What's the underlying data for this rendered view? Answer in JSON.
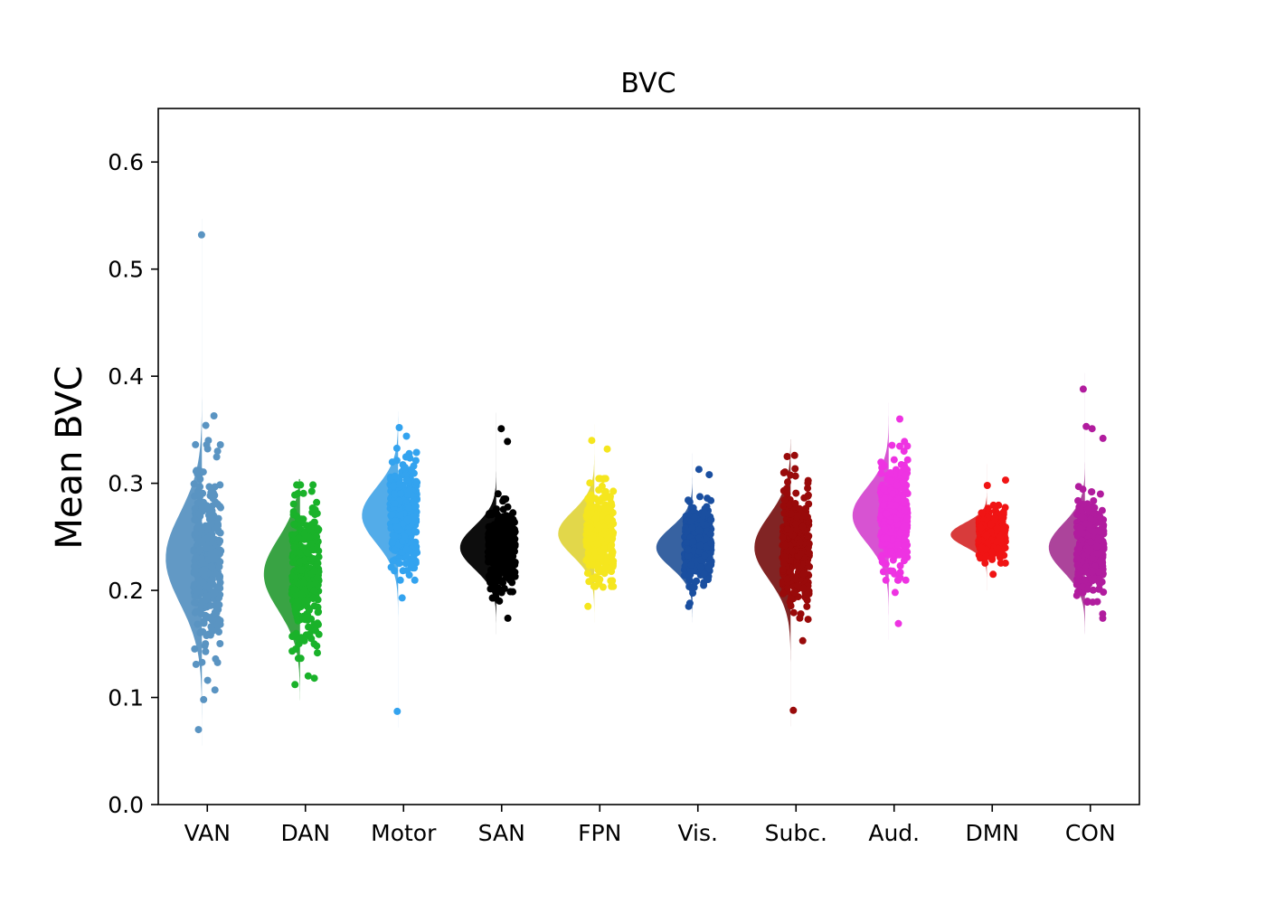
{
  "chart_data": {
    "type": "raincloud",
    "title": "BVC",
    "ylabel": "Mean BVC",
    "xlabel": "",
    "ylim": [
      0.0,
      0.65
    ],
    "yticks": [
      0.0,
      0.1,
      0.2,
      0.3,
      0.4,
      0.5,
      0.6
    ],
    "grid": false,
    "categories": [
      {
        "name": "VAN",
        "color": "#5a94c2",
        "cloud_color": "#5a94c2",
        "center": 0.23,
        "q1": 0.205,
        "q3": 0.262,
        "min": 0.07,
        "max": 0.532,
        "outliers": [
          0.532,
          0.363,
          0.354,
          0.34,
          0.33,
          0.116,
          0.107,
          0.098,
          0.07
        ]
      },
      {
        "name": "DAN",
        "color": "#1ab22a",
        "cloud_color": "#2e9e3a",
        "center": 0.215,
        "q1": 0.195,
        "q3": 0.24,
        "min": 0.112,
        "max": 0.289,
        "outliers": [
          0.289,
          0.12,
          0.118,
          0.112
        ]
      },
      {
        "name": "Motor",
        "color": "#33a3ef",
        "cloud_color": "#4aa8e8",
        "center": 0.27,
        "q1": 0.255,
        "q3": 0.29,
        "min": 0.087,
        "max": 0.352,
        "outliers": [
          0.352,
          0.344,
          0.193,
          0.087
        ]
      },
      {
        "name": "SAN",
        "color": "#000000",
        "cloud_color": "#000000",
        "center": 0.24,
        "q1": 0.228,
        "q3": 0.255,
        "min": 0.174,
        "max": 0.351,
        "outliers": [
          0.351,
          0.339,
          0.19,
          0.174
        ]
      },
      {
        "name": "FPN",
        "color": "#f5e61e",
        "cloud_color": "#e0d540",
        "center": 0.253,
        "q1": 0.24,
        "q3": 0.268,
        "min": 0.185,
        "max": 0.34,
        "outliers": [
          0.34,
          0.332,
          0.203,
          0.185
        ]
      },
      {
        "name": "Vis.",
        "color": "#1a4fa0",
        "cloud_color": "#2c5a9c",
        "center": 0.24,
        "q1": 0.23,
        "q3": 0.255,
        "min": 0.185,
        "max": 0.313,
        "outliers": [
          0.313,
          0.308,
          0.188,
          0.185
        ]
      },
      {
        "name": "Subc.",
        "color": "#990a0a",
        "cloud_color": "#7a1818",
        "center": 0.24,
        "q1": 0.225,
        "q3": 0.265,
        "min": 0.088,
        "max": 0.326,
        "outliers": [
          0.326,
          0.325,
          0.178,
          0.153,
          0.088
        ]
      },
      {
        "name": "Aud.",
        "color": "#ee33e2",
        "cloud_color": "#d54ad0",
        "center": 0.27,
        "q1": 0.255,
        "q3": 0.29,
        "min": 0.169,
        "max": 0.36,
        "outliers": [
          0.36,
          0.339,
          0.198,
          0.169
        ]
      },
      {
        "name": "DMN",
        "color": "#f01414",
        "cloud_color": "#d63030",
        "center": 0.252,
        "q1": 0.245,
        "q3": 0.26,
        "min": 0.215,
        "max": 0.303,
        "outliers": [
          0.303,
          0.298,
          0.215
        ]
      },
      {
        "name": "CON",
        "color": "#b11c9e",
        "cloud_color": "#a83a96",
        "center": 0.24,
        "q1": 0.228,
        "q3": 0.258,
        "min": 0.174,
        "max": 0.388,
        "outliers": [
          0.388,
          0.353,
          0.351,
          0.342,
          0.178,
          0.174
        ]
      }
    ]
  }
}
